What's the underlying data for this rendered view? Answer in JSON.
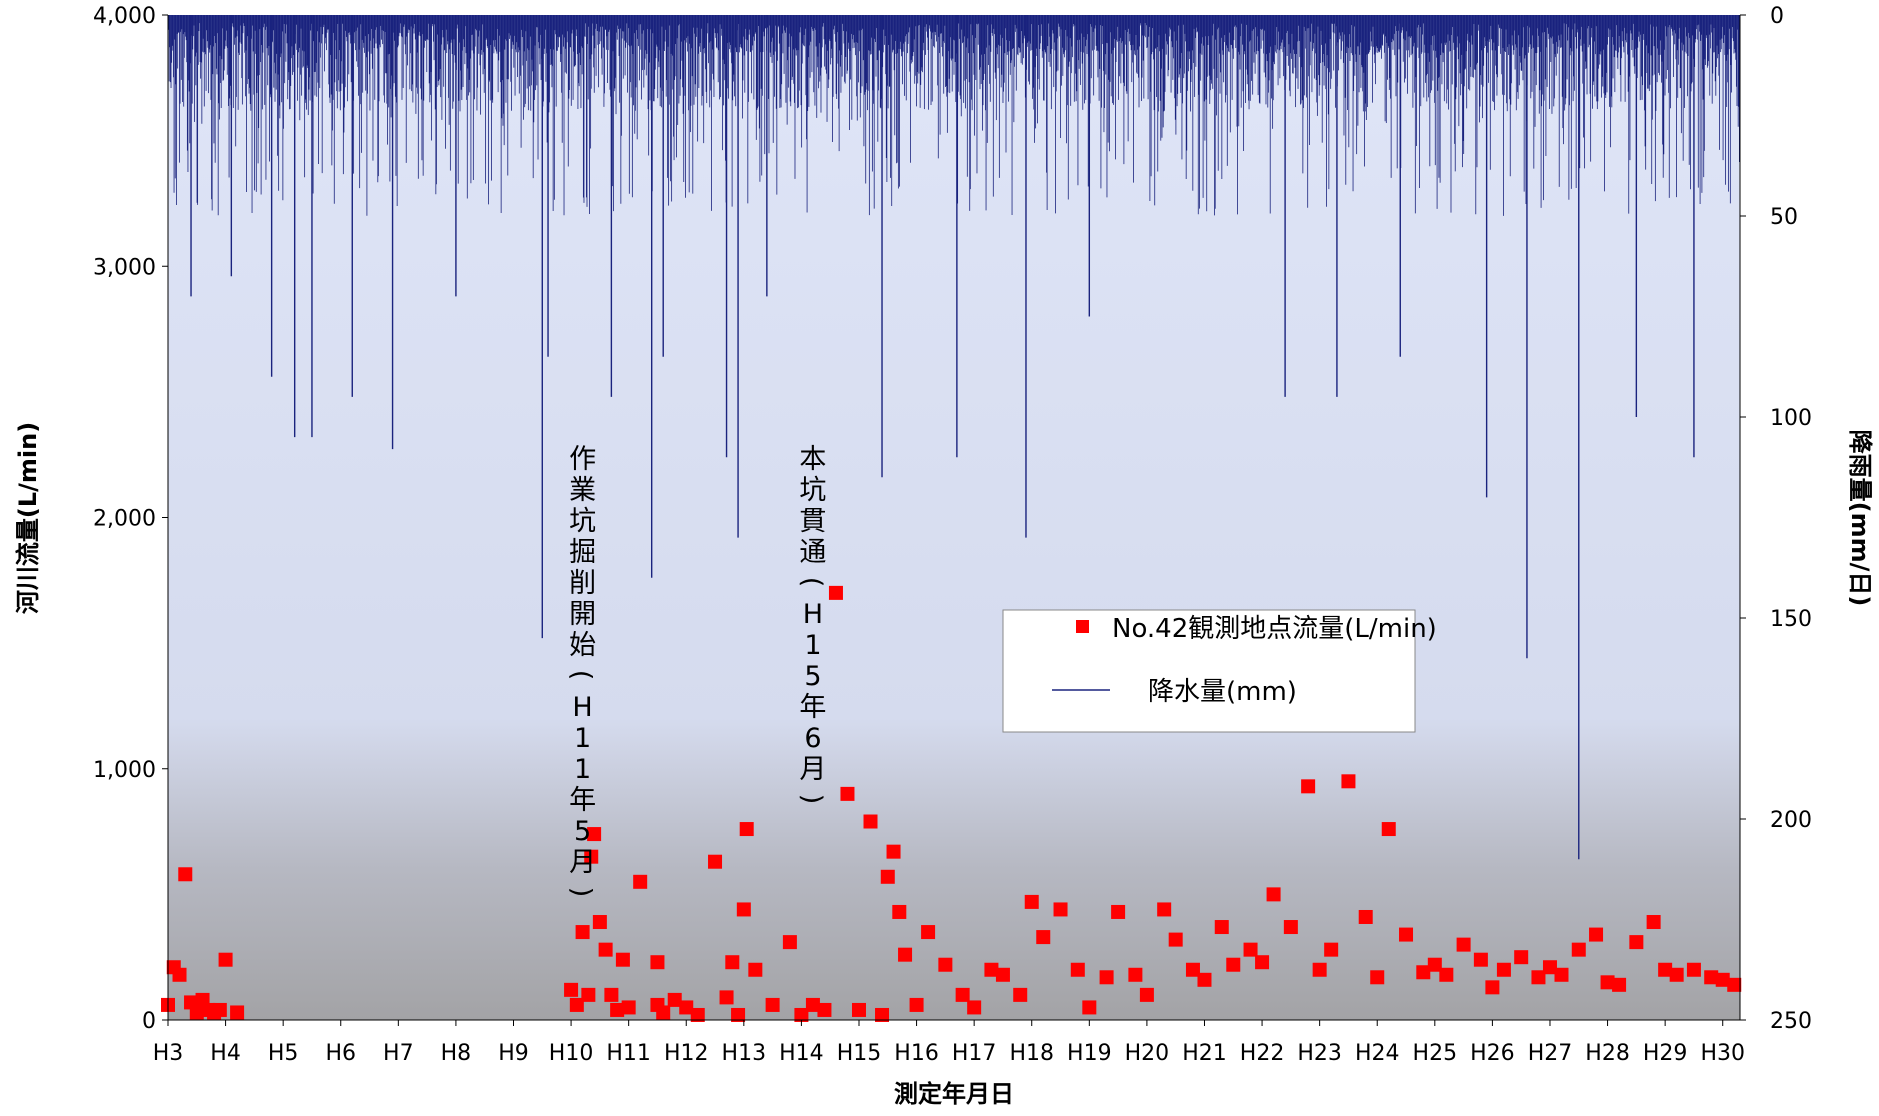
{
  "chart_data": {
    "type": "scatter",
    "title": "",
    "xlabel": "測定年月日",
    "ylabel": "河川流量(L/min)",
    "y2label": "降雨量(mm/日)",
    "ylim": [
      0,
      4000
    ],
    "y2lim": [
      0,
      250
    ],
    "y2_inverted": true,
    "xlim": [
      3,
      30.3
    ],
    "x_categories": [
      "H3",
      "H4",
      "H5",
      "H6",
      "H7",
      "H8",
      "H9",
      "H10",
      "H11",
      "H12",
      "H13",
      "H14",
      "H15",
      "H16",
      "H17",
      "H18",
      "H19",
      "H20",
      "H21",
      "H22",
      "H23",
      "H24",
      "H25",
      "H26",
      "H27",
      "H28",
      "H29",
      "H30"
    ],
    "y_ticks": [
      0,
      1000,
      2000,
      3000,
      4000
    ],
    "y_tick_labels": [
      "0",
      "1,000",
      "2,000",
      "3,000",
      "4,000"
    ],
    "y2_ticks": [
      0,
      50,
      100,
      150,
      200,
      250
    ],
    "y2_tick_labels": [
      "0",
      "50",
      "100",
      "150",
      "200",
      "250"
    ],
    "grid": false,
    "legend_position": "center-right",
    "background": "gradient from light blue (top) to gray (bottom)",
    "series": [
      {
        "name": "No.42観測地点流量(L/min)",
        "type": "scatter",
        "marker": "square",
        "color": "#ff0000",
        "x": [
          3.0,
          3.1,
          3.2,
          3.3,
          3.4,
          3.5,
          3.6,
          3.7,
          3.8,
          3.9,
          4.0,
          4.2,
          10.0,
          10.1,
          10.2,
          10.3,
          10.35,
          10.4,
          10.5,
          10.6,
          10.7,
          10.8,
          10.9,
          11.0,
          11.2,
          11.5,
          11.5,
          11.6,
          11.8,
          12.0,
          12.2,
          12.5,
          12.7,
          12.8,
          12.9,
          13.0,
          13.05,
          13.2,
          13.5,
          13.8,
          14.0,
          14.2,
          14.4,
          14.6,
          14.8,
          15.0,
          15.2,
          15.4,
          15.5,
          15.6,
          15.7,
          15.8,
          16.0,
          16.2,
          16.5,
          16.8,
          17.0,
          17.3,
          17.5,
          17.8,
          18.0,
          18.2,
          18.5,
          18.8,
          19.0,
          19.3,
          19.5,
          19.8,
          20.0,
          20.3,
          20.5,
          20.8,
          21.0,
          21.3,
          21.5,
          21.8,
          22.0,
          22.2,
          22.5,
          22.8,
          23.0,
          23.2,
          23.5,
          23.8,
          24.0,
          24.2,
          24.5,
          24.8,
          25.0,
          25.2,
          25.5,
          25.8,
          26.0,
          26.2,
          26.5,
          26.8,
          27.0,
          27.2,
          27.5,
          27.8,
          28.0,
          28.2,
          28.5,
          28.8,
          29.0,
          29.2,
          29.5,
          29.8,
          30.0,
          30.2
        ],
        "y": [
          60,
          210,
          180,
          580,
          70,
          30,
          80,
          40,
          30,
          40,
          240,
          30,
          120,
          60,
          350,
          100,
          650,
          740,
          390,
          280,
          100,
          40,
          240,
          50,
          550,
          60,
          230,
          30,
          80,
          50,
          20,
          630,
          90,
          230,
          20,
          440,
          760,
          200,
          60,
          310,
          20,
          60,
          40,
          1700,
          900,
          40,
          790,
          20,
          570,
          670,
          430,
          260,
          60,
          350,
          220,
          100,
          50,
          200,
          180,
          100,
          470,
          330,
          440,
          200,
          50,
          170,
          430,
          180,
          100,
          440,
          320,
          200,
          160,
          370,
          220,
          280,
          230,
          500,
          370,
          930,
          200,
          280,
          950,
          410,
          170,
          760,
          340,
          190,
          220,
          180,
          300,
          240,
          130,
          200,
          250,
          170,
          210,
          180,
          280,
          340,
          150,
          140,
          310,
          390,
          200,
          180,
          200,
          170,
          160,
          140
        ]
      },
      {
        "name": "降水量(mm)",
        "type": "bar",
        "axis": "y2",
        "color": "#1a237e",
        "x": [
          3.4,
          4.1,
          4.8,
          5.2,
          5.5,
          6.2,
          6.9,
          8.0,
          9.5,
          9.6,
          10.7,
          11.4,
          11.6,
          12.7,
          12.9,
          13.4,
          15.4,
          16.7,
          17.9,
          19.0,
          22.4,
          23.3,
          24.4,
          25.9,
          26.6,
          27.5,
          28.5,
          29.5
        ],
        "values": [
          70,
          65,
          90,
          105,
          105,
          95,
          108,
          70,
          155,
          85,
          95,
          140,
          85,
          110,
          130,
          70,
          115,
          110,
          130,
          75,
          95,
          95,
          85,
          120,
          160,
          210,
          100,
          110
        ]
      }
    ],
    "annotations": [
      {
        "text": "作業坑掘削開始(H11年5月)",
        "x": 10.2
      },
      {
        "text": "本坑貫通(H15年6月)",
        "x": 14.2
      }
    ]
  }
}
